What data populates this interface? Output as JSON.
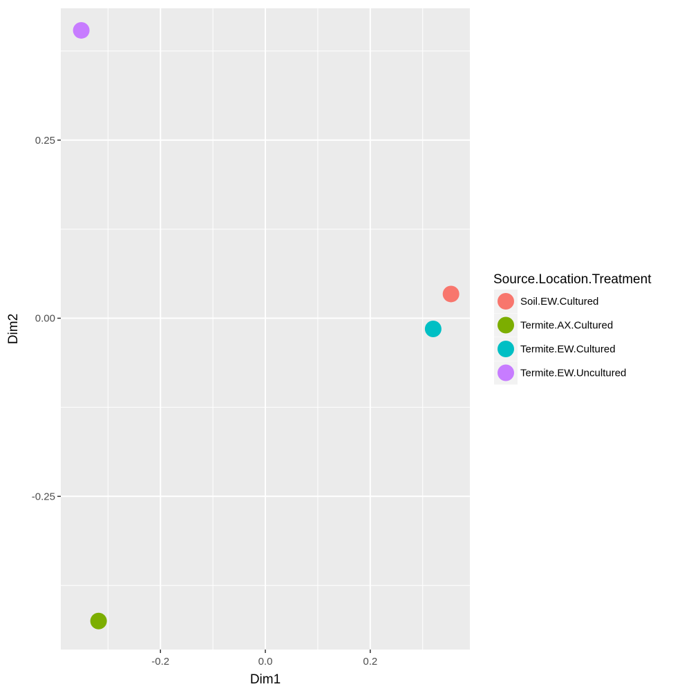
{
  "chart_data": {
    "type": "scatter",
    "title": "",
    "xlabel": "Dim1",
    "ylabel": "Dim2",
    "xlim": [
      -0.39,
      0.39
    ],
    "ylim": [
      -0.465,
      0.435
    ],
    "x_ticks": [
      -0.2,
      0.0,
      0.2
    ],
    "x_tick_labels": [
      "-0.2",
      "0.0",
      "0.2"
    ],
    "y_ticks": [
      -0.25,
      0.0,
      0.25
    ],
    "y_tick_labels": [
      "-0.25",
      "0.00",
      "0.25"
    ],
    "x_minor": [
      -0.3,
      -0.1,
      0.1,
      0.3
    ],
    "y_minor": [
      -0.375,
      -0.125,
      0.125,
      0.375
    ],
    "grid": true,
    "legend": {
      "title": "Source.Location.Treatment",
      "position": "right"
    },
    "series": [
      {
        "name": "Soil.EW.Cultured",
        "color": "#F8766D",
        "points": [
          {
            "x": 0.354,
            "y": 0.034
          }
        ]
      },
      {
        "name": "Termite.AX.Cultured",
        "color": "#7CAE00",
        "points": [
          {
            "x": -0.318,
            "y": -0.425
          }
        ]
      },
      {
        "name": "Termite.EW.Cultured",
        "color": "#00BFC4",
        "points": [
          {
            "x": 0.32,
            "y": -0.015
          }
        ]
      },
      {
        "name": "Termite.EW.Uncultured",
        "color": "#C77CFF",
        "points": [
          {
            "x": -0.351,
            "y": 0.404
          }
        ]
      }
    ]
  }
}
